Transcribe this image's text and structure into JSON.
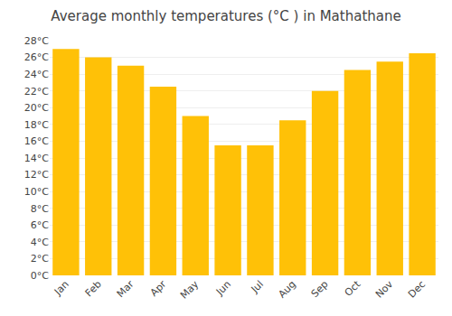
{
  "chart_data": {
    "type": "bar",
    "title": "Average monthly temperatures (°C ) in Mathathane",
    "categories": [
      "Jan",
      "Feb",
      "Mar",
      "Apr",
      "May",
      "Jun",
      "Jul",
      "Aug",
      "Sep",
      "Oct",
      "Nov",
      "Dec"
    ],
    "values": [
      27,
      26,
      25,
      22.5,
      19,
      15.5,
      15.5,
      18.5,
      22,
      24.5,
      25.5,
      26.5
    ],
    "color": "#FFC107",
    "ylim": [
      0,
      28
    ],
    "yticks": [
      {
        "value": 0,
        "label": "0°C"
      },
      {
        "value": 2,
        "label": "2°C"
      },
      {
        "value": 4,
        "label": "4°C"
      },
      {
        "value": 6,
        "label": "6°C"
      },
      {
        "value": 8,
        "label": "8°C"
      },
      {
        "value": 10,
        "label": "10°C"
      },
      {
        "value": 12,
        "label": "12°C"
      },
      {
        "value": 14,
        "label": "14°C"
      },
      {
        "value": 16,
        "label": "16°C"
      },
      {
        "value": 18,
        "label": "18°C"
      },
      {
        "value": 20,
        "label": "20°C"
      },
      {
        "value": 22,
        "label": "22°C"
      },
      {
        "value": 24,
        "label": "24°C"
      },
      {
        "value": 26,
        "label": "26°C"
      },
      {
        "value": 28,
        "label": "28°C"
      }
    ],
    "grid": true
  }
}
